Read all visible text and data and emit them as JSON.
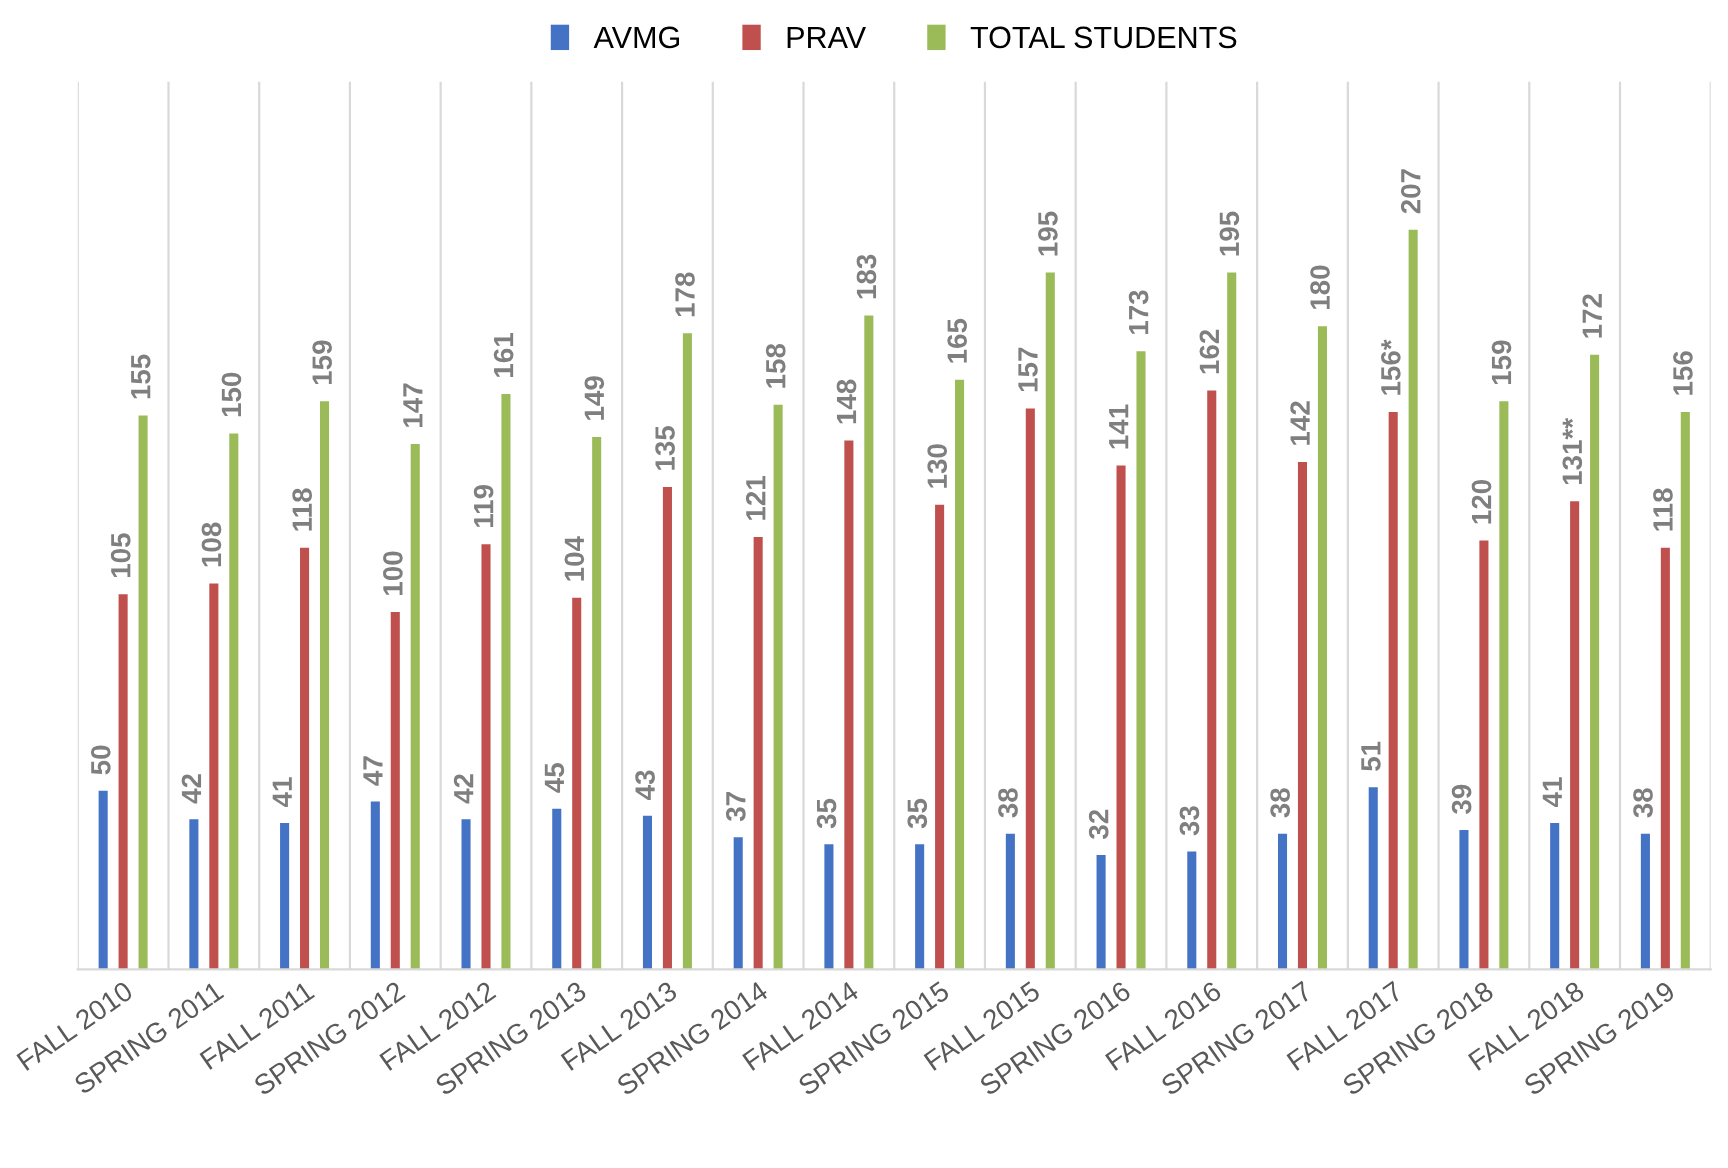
{
  "chart_data": {
    "type": "bar",
    "categories": [
      "FALL 2010",
      "SPRING 2011",
      "FALL 2011",
      "SPRING 2012",
      "FALL 2012",
      "SPRING 2013",
      "FALL 2013",
      "SPRING 2014",
      "FALL 2014",
      "SPRING 2015",
      "FALL 2015",
      "SPRING 2016",
      "FALL 2016",
      "SPRING 2017",
      "FALL 2017",
      "SPRING 2018",
      "FALL 2018",
      "SPRING 2019"
    ],
    "series": [
      {
        "name": "AVMG",
        "color": "#4472c4",
        "values": [
          50,
          42,
          41,
          47,
          42,
          45,
          43,
          37,
          35,
          35,
          38,
          32,
          33,
          38,
          51,
          39,
          41,
          38
        ]
      },
      {
        "name": "PRAV",
        "color": "#c0504d",
        "values": [
          105,
          108,
          118,
          100,
          119,
          104,
          135,
          121,
          148,
          130,
          157,
          141,
          162,
          142,
          156,
          120,
          131,
          118
        ],
        "value_labels": [
          "105",
          "108",
          "118",
          "100",
          "119",
          "104",
          "135",
          "121",
          "148",
          "130",
          "157",
          "141",
          "162",
          "142",
          "156*",
          "120",
          "131**",
          "118"
        ]
      },
      {
        "name": "TOTAL STUDENTS",
        "color": "#9bbb59",
        "values": [
          155,
          150,
          159,
          147,
          161,
          149,
          178,
          158,
          183,
          165,
          195,
          173,
          195,
          180,
          207,
          159,
          172,
          156
        ]
      }
    ],
    "data_labels": true,
    "legend": "top",
    "grid": "x",
    "tick_labels": "x"
  }
}
